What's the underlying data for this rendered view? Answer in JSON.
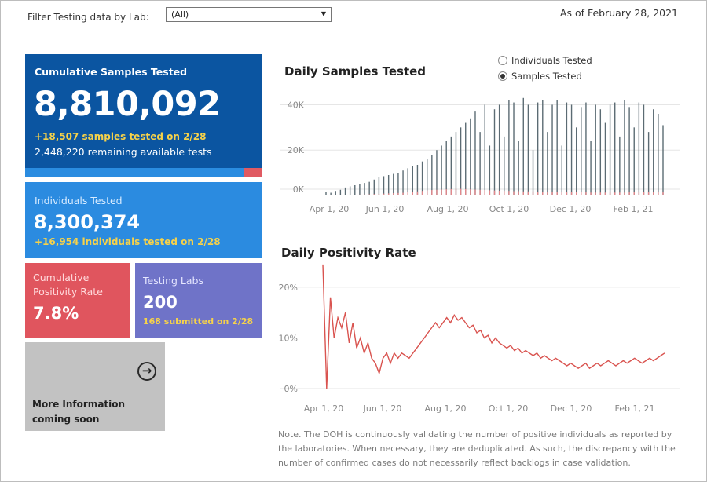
{
  "header": {
    "filter_label": "Filter Testing data by Lab:",
    "filter_value": "(All)",
    "as_of": "As of February 28, 2021"
  },
  "cards": {
    "cumulative": {
      "title": "Cumulative Samples Tested",
      "value": "8,810,092",
      "sub1": "+18,507 samples tested on 2/28",
      "sub2": "2,448,220 remaining available tests",
      "used_fraction": 0.925
    },
    "individuals": {
      "title": "Individuals Tested",
      "value": "8,300,374",
      "sub1": "+16,954  individuals  tested on 2/28"
    },
    "positivity": {
      "title": "Cumulative Positivity Rate",
      "value": "7.8%"
    },
    "labs": {
      "title": "Testing Labs",
      "value": "200",
      "sub1": "168 submitted on 2/28"
    },
    "more": {
      "text": "More Information coming soon",
      "icon": "arrow-right-circle-icon"
    }
  },
  "toggle": {
    "options": [
      "Individuals Tested",
      "Samples Tested"
    ],
    "selected": 1
  },
  "note": "Note. The DOH is continuously validating the number of positive individuals as reported by the laboratories. When necessary, they are deduplicated. As such, the discrepancy with the number of confirmed cases do not necessarily reflect backlogs in case validation.",
  "colors": {
    "cumulative_bg": "#0b55a1",
    "individuals_bg": "#2b8be0",
    "positivity_bg": "#e0555e",
    "labs_bg": "#6f73c8",
    "more_bg": "#c2c2c2",
    "highlight_text": "#f6d24a",
    "bar_color": "#5b6b73",
    "positive_bar_color": "#e2888c",
    "line_color": "#d9534f"
  },
  "chart_data": [
    {
      "type": "bar",
      "title": "Daily Samples Tested",
      "x_ticks": [
        "Apr 1, 20",
        "Jun 1, 20",
        "Aug 1, 20",
        "Oct 1, 20",
        "Dec 1, 20",
        "Feb 1, 21"
      ],
      "y_ticks": [
        "0K",
        "20K",
        "40K"
      ],
      "ylim": [
        0,
        45000
      ],
      "x_range": [
        "2020-03-15",
        "2021-02-28"
      ],
      "series": [
        {
          "values": [
            1500,
            1200,
            2000,
            2500,
            3500,
            4000,
            4500,
            5000,
            5500,
            6000,
            7000,
            8000,
            8500,
            9000,
            9500,
            10000,
            11000,
            12000,
            13000,
            13500,
            15000,
            16000,
            18000,
            20000,
            22000,
            24000,
            26000,
            28000,
            30000,
            32000,
            34000,
            37000,
            28000,
            40000,
            22000,
            38000,
            40000,
            26000,
            42000,
            41000,
            24000,
            43000,
            40000,
            20000,
            41000,
            42000,
            28000,
            40000,
            42000,
            22000,
            41000,
            40000,
            30000,
            39000,
            41000,
            24000,
            40000,
            38000,
            32000,
            40000,
            41000,
            26000,
            42000,
            39000,
            30000,
            41000,
            40000,
            28000,
            38000,
            36000,
            31000
          ]
        },
        {
          "values": [
            100,
            100,
            150,
            200,
            250,
            300,
            350,
            400,
            450,
            500,
            600,
            700,
            800,
            900,
            1000,
            1100,
            1200,
            1400,
            1600,
            1800,
            2000,
            2200,
            2400,
            2500,
            2600,
            2700,
            2800,
            2900,
            2900,
            2800,
            2700,
            2600,
            2500,
            2400,
            2300,
            2200,
            2100,
            2000,
            2000,
            1900,
            1900,
            1800,
            1800,
            1800,
            1700,
            1700,
            1600,
            1600,
            1600,
            1500,
            1500,
            1500,
            1400,
            1400,
            1400,
            1300,
            1300,
            1300,
            1300,
            1300,
            1300,
            1300,
            1300,
            1400,
            1400,
            1400,
            1400,
            1400,
            1400,
            1400,
            1400
          ]
        }
      ]
    },
    {
      "type": "line",
      "title": "Daily Positivity Rate",
      "x_ticks": [
        "Apr 1, 20",
        "Jun 1, 20",
        "Aug 1, 20",
        "Oct 1, 20",
        "Dec 1, 20",
        "Feb 1, 21"
      ],
      "y_ticks": [
        "0%",
        "10%",
        "20%"
      ],
      "ylim": [
        0,
        0.22
      ],
      "x_range": [
        "2020-03-15",
        "2021-02-28"
      ],
      "series": [
        {
          "values": [
            0.245,
            0.0,
            0.18,
            0.1,
            0.14,
            0.12,
            0.15,
            0.09,
            0.13,
            0.08,
            0.1,
            0.07,
            0.09,
            0.06,
            0.05,
            0.03,
            0.06,
            0.07,
            0.05,
            0.07,
            0.06,
            0.07,
            0.065,
            0.06,
            0.07,
            0.08,
            0.09,
            0.1,
            0.11,
            0.12,
            0.13,
            0.12,
            0.13,
            0.14,
            0.13,
            0.145,
            0.135,
            0.14,
            0.13,
            0.12,
            0.125,
            0.11,
            0.115,
            0.1,
            0.105,
            0.09,
            0.1,
            0.09,
            0.085,
            0.08,
            0.085,
            0.075,
            0.08,
            0.07,
            0.075,
            0.07,
            0.065,
            0.07,
            0.06,
            0.065,
            0.06,
            0.055,
            0.06,
            0.055,
            0.05,
            0.045,
            0.05,
            0.045,
            0.04,
            0.045,
            0.05,
            0.04,
            0.045,
            0.05,
            0.045,
            0.05,
            0.055,
            0.05,
            0.045,
            0.05,
            0.055,
            0.05,
            0.055,
            0.06,
            0.055,
            0.05,
            0.055,
            0.06,
            0.055,
            0.06,
            0.065,
            0.07
          ]
        }
      ]
    }
  ]
}
